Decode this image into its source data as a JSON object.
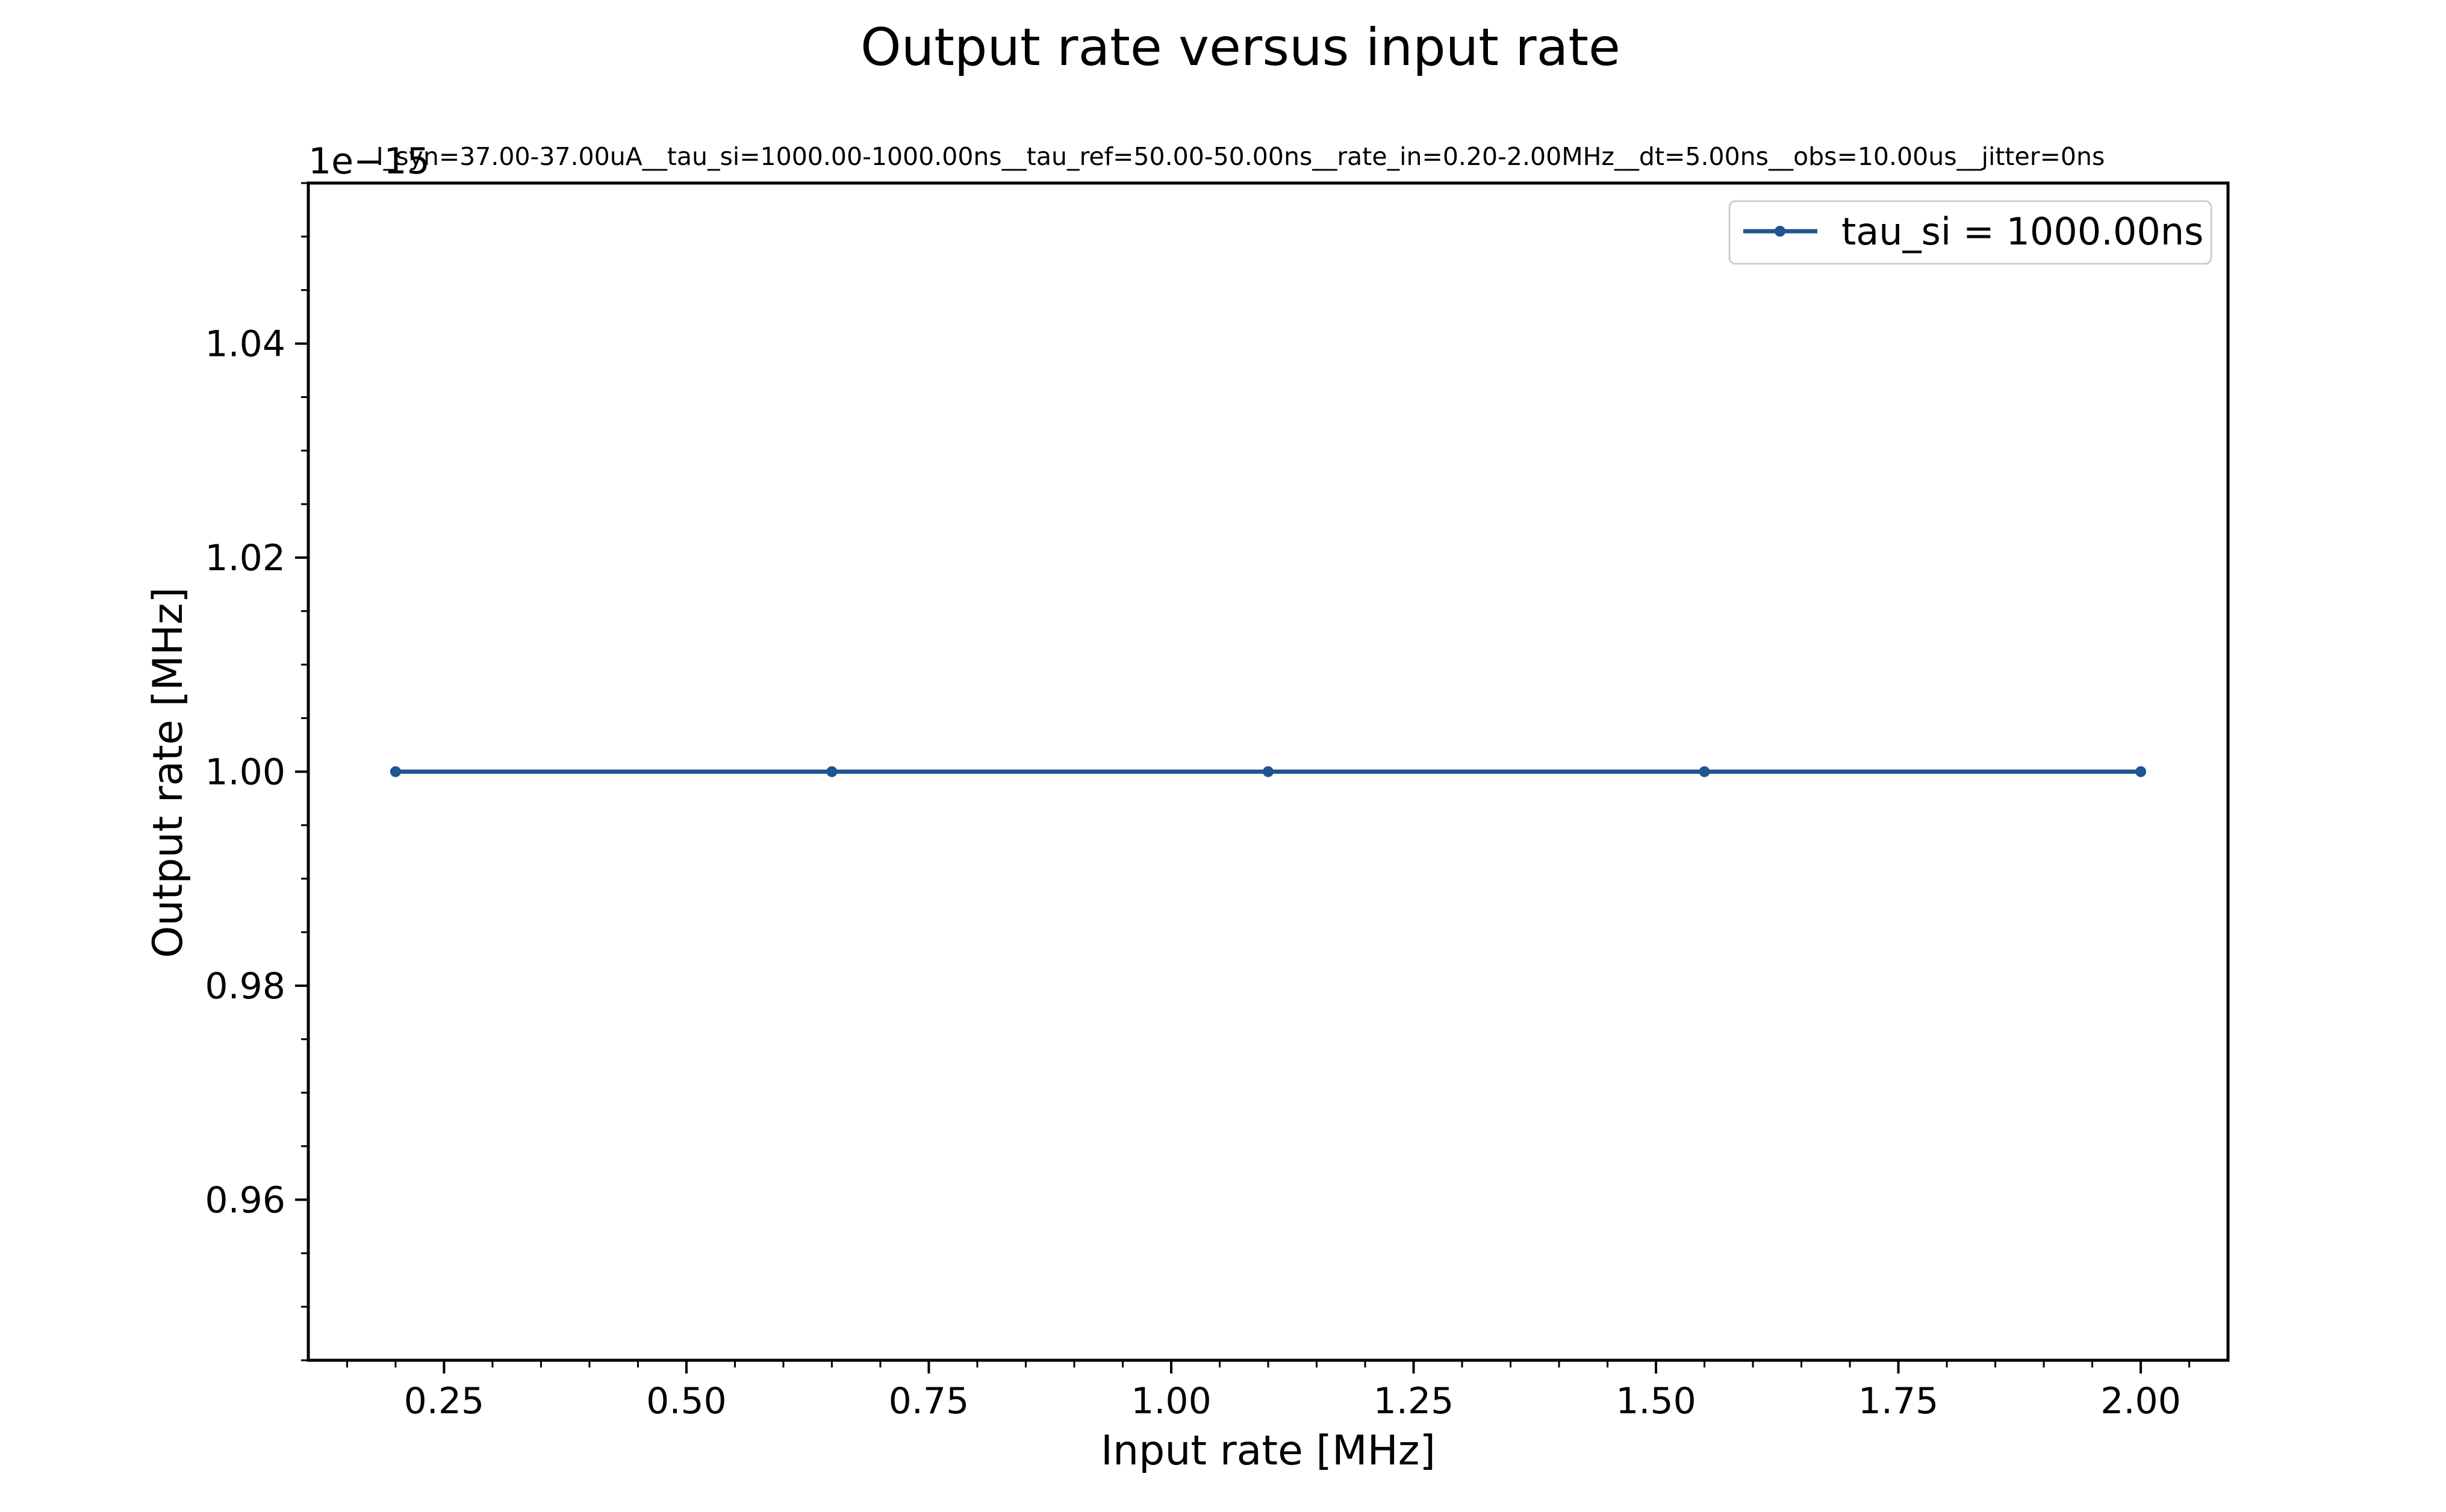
{
  "chart_data": {
    "type": "line",
    "title": "Output rate versus input rate",
    "subtitle": "I_syn=37.00-37.00uA__tau_si=1000.00-1000.00ns__tau_ref=50.00-50.00ns__rate_in=0.20-2.00MHz__dt=5.00ns__obs=10.00us__jitter=0ns",
    "xlabel": "Input rate [MHz]",
    "ylabel": "Output rate [MHz]",
    "y_offset_text": "1e−15",
    "xlim": [
      0.11,
      2.09
    ],
    "ylim": [
      0.945,
      1.055
    ],
    "xticks": [
      0.25,
      0.5,
      0.75,
      1.0,
      1.25,
      1.5,
      1.75,
      2.0
    ],
    "xtick_labels": [
      "0.25",
      "0.50",
      "0.75",
      "1.00",
      "1.25",
      "1.50",
      "1.75",
      "2.00"
    ],
    "yticks": [
      0.96,
      0.98,
      1.0,
      1.02,
      1.04
    ],
    "ytick_labels": [
      "0.96",
      "0.98",
      "1.00",
      "1.02",
      "1.04"
    ],
    "grid": false,
    "legend_position": "top-right",
    "series": [
      {
        "name": "tau_si = 1000.00ns",
        "color": "#1f5591",
        "x": [
          0.2,
          0.65,
          1.1,
          1.55,
          2.0
        ],
        "y": [
          1.0,
          1.0,
          1.0,
          1.0,
          1.0
        ]
      }
    ]
  }
}
